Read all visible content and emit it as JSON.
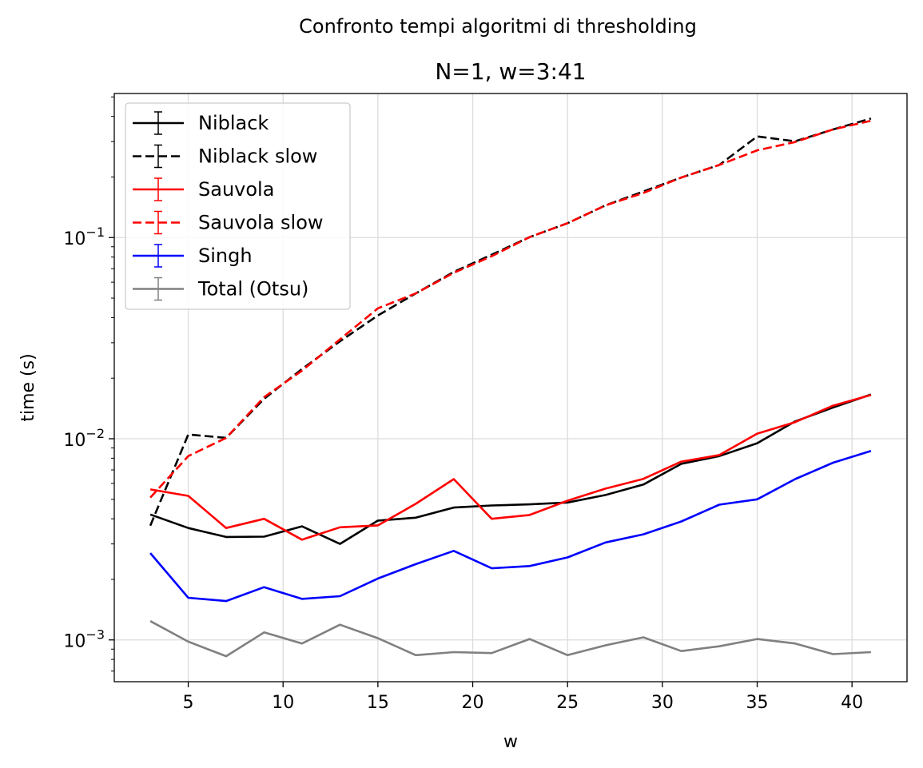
{
  "chart_data": {
    "type": "line",
    "suptitle": "Confronto tempi algoritmi di thresholding",
    "title": "N=1, w=3:41",
    "xlabel": "w",
    "ylabel": "time (s)",
    "yscale": "log",
    "xlim": [
      1.1,
      42.9
    ],
    "ylim": [
      0.00062,
      0.52
    ],
    "xticks": [
      5,
      10,
      15,
      20,
      25,
      30,
      35,
      40
    ],
    "yticks": [
      {
        "value": 0.001,
        "base": "10",
        "exp": "−3"
      },
      {
        "value": 0.01,
        "base": "10",
        "exp": "−2"
      },
      {
        "value": 0.1,
        "base": "10",
        "exp": "−1"
      }
    ],
    "grid": true,
    "legend_position": "upper left",
    "x": [
      3,
      5,
      7,
      9,
      11,
      13,
      15,
      17,
      19,
      21,
      23,
      25,
      27,
      29,
      31,
      33,
      35,
      37,
      39,
      41
    ],
    "series": [
      {
        "name": "Niblack",
        "color": "#000000",
        "dash": "solid",
        "values": [
          0.0042,
          0.0036,
          0.00325,
          0.00326,
          0.00367,
          0.003,
          0.00392,
          0.00405,
          0.00455,
          0.00466,
          0.00472,
          0.00482,
          0.00525,
          0.00592,
          0.0075,
          0.0082,
          0.0095,
          0.0122,
          0.0143,
          0.0166
        ]
      },
      {
        "name": "Niblack slow",
        "color": "#000000",
        "dash": "dashed",
        "values": [
          0.0037,
          0.0105,
          0.0101,
          0.0158,
          0.0222,
          0.0305,
          0.041,
          0.0528,
          0.0675,
          0.0822,
          0.1005,
          0.1178,
          0.1445,
          0.1695,
          0.1988,
          0.2295,
          0.3182,
          0.3008,
          0.3445,
          0.3905
        ]
      },
      {
        "name": "Sauvola",
        "color": "#ff0000",
        "dash": "solid",
        "values": [
          0.0056,
          0.0052,
          0.0036,
          0.004,
          0.00315,
          0.00363,
          0.00371,
          0.00475,
          0.0063,
          0.004,
          0.00418,
          0.00492,
          0.00565,
          0.00632,
          0.0077,
          0.0083,
          0.0106,
          0.0121,
          0.0146,
          0.0165
        ]
      },
      {
        "name": "Sauvola slow",
        "color": "#ff0000",
        "dash": "dashed",
        "values": [
          0.0051,
          0.0082,
          0.0101,
          0.0161,
          0.0218,
          0.0312,
          0.0445,
          0.0528,
          0.0668,
          0.0808,
          0.1005,
          0.1178,
          0.1445,
          0.1665,
          0.1988,
          0.2295,
          0.2715,
          0.2985,
          0.3445,
          0.3805
        ]
      },
      {
        "name": "Singh",
        "color": "#0000ff",
        "dash": "solid",
        "values": [
          0.0027,
          0.00162,
          0.00156,
          0.00183,
          0.0016,
          0.00165,
          0.00202,
          0.00238,
          0.00277,
          0.00227,
          0.00233,
          0.00257,
          0.00305,
          0.00335,
          0.00388,
          0.0047,
          0.005,
          0.0063,
          0.0076,
          0.0087
        ]
      },
      {
        "name": "Total (Otsu)",
        "color": "#808080",
        "dash": "solid",
        "values": [
          0.00124,
          0.00098,
          0.00083,
          0.00109,
          0.00096,
          0.00119,
          0.00102,
          0.00084,
          0.00087,
          0.00086,
          0.00101,
          0.00084,
          0.00094,
          0.00103,
          0.00088,
          0.00093,
          0.00101,
          0.00096,
          0.00085,
          0.00087
        ]
      }
    ]
  }
}
